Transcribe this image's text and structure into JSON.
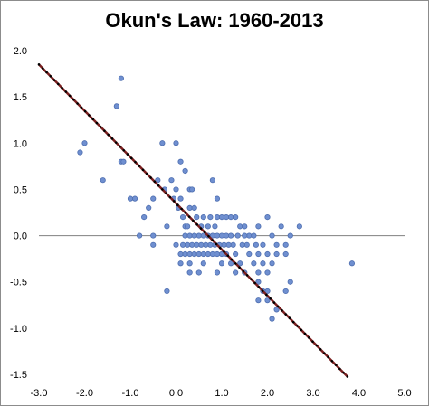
{
  "chart_data": {
    "type": "scatter",
    "title": "Okun's Law: 1960-2013",
    "xlabel": "",
    "ylabel": "",
    "xlim": [
      -3.0,
      5.0
    ],
    "ylim": [
      -1.5,
      2.0
    ],
    "xticks": [
      "-3.0",
      "-2.0",
      "-1.0",
      "0.0",
      "1.0",
      "2.0",
      "3.0",
      "4.0",
      "5.0"
    ],
    "yticks": [
      "2.0",
      "1.5",
      "1.0",
      "0.5",
      "0.0",
      "-0.5",
      "-1.0",
      "-1.5"
    ],
    "grid": false,
    "legend": "none",
    "colors": {
      "points": "#6f8fd0",
      "point_edge": "#4f6fb0",
      "trendline": "#7a1f1f",
      "trend_markers": "#000000",
      "axes": "#808080"
    },
    "points": [
      [
        -1.2,
        1.7
      ],
      [
        -1.3,
        1.4
      ],
      [
        -2.0,
        1.0
      ],
      [
        -2.1,
        0.9
      ],
      [
        -1.2,
        0.8
      ],
      [
        -1.15,
        0.8
      ],
      [
        -1.6,
        0.6
      ],
      [
        -0.3,
        1.0
      ],
      [
        0.0,
        1.0
      ],
      [
        -1.0,
        0.4
      ],
      [
        -0.9,
        0.4
      ],
      [
        -0.4,
        0.6
      ],
      [
        -0.25,
        0.5
      ],
      [
        -0.1,
        0.6
      ],
      [
        0.1,
        0.8
      ],
      [
        0.2,
        0.7
      ],
      [
        0.3,
        0.5
      ],
      [
        0.35,
        0.5
      ],
      [
        0.8,
        0.6
      ],
      [
        0.9,
        0.4
      ],
      [
        0.0,
        0.5
      ],
      [
        -0.5,
        0.4
      ],
      [
        -0.6,
        0.3
      ],
      [
        -0.7,
        0.2
      ],
      [
        -0.05,
        0.4
      ],
      [
        0.05,
        0.3
      ],
      [
        0.1,
        0.4
      ],
      [
        0.15,
        0.2
      ],
      [
        0.2,
        0.1
      ],
      [
        0.25,
        0.1
      ],
      [
        0.3,
        0.3
      ],
      [
        0.4,
        0.3
      ],
      [
        0.45,
        0.2
      ],
      [
        0.5,
        0.0
      ],
      [
        0.55,
        0.1
      ],
      [
        0.6,
        0.2
      ],
      [
        0.7,
        0.1
      ],
      [
        0.75,
        0.2
      ],
      [
        0.8,
        0.0
      ],
      [
        0.85,
        0.1
      ],
      [
        0.9,
        0.2
      ],
      [
        1.0,
        0.2
      ],
      [
        1.1,
        0.2
      ],
      [
        1.2,
        0.2
      ],
      [
        1.3,
        0.2
      ],
      [
        1.35,
        0.0
      ],
      [
        1.4,
        0.1
      ],
      [
        1.5,
        0.1
      ],
      [
        1.6,
        0.0
      ],
      [
        1.7,
        0.0
      ],
      [
        1.8,
        0.1
      ],
      [
        2.0,
        0.2
      ],
      [
        2.1,
        0.0
      ],
      [
        2.3,
        0.1
      ],
      [
        2.5,
        0.0
      ],
      [
        2.7,
        0.1
      ],
      [
        2.4,
        -0.1
      ],
      [
        2.2,
        -0.1
      ],
      [
        1.9,
        -0.1
      ],
      [
        1.75,
        -0.1
      ],
      [
        1.55,
        -0.1
      ],
      [
        1.45,
        -0.1
      ],
      [
        1.25,
        -0.1
      ],
      [
        1.15,
        -0.1
      ],
      [
        1.05,
        -0.1
      ],
      [
        0.95,
        -0.1
      ],
      [
        0.85,
        -0.1
      ],
      [
        0.75,
        -0.1
      ],
      [
        0.65,
        -0.1
      ],
      [
        0.55,
        -0.1
      ],
      [
        0.45,
        -0.1
      ],
      [
        0.35,
        -0.1
      ],
      [
        0.25,
        -0.1
      ],
      [
        0.15,
        -0.1
      ],
      [
        0.2,
        0.0
      ],
      [
        0.3,
        0.0
      ],
      [
        0.4,
        0.0
      ],
      [
        0.6,
        0.0
      ],
      [
        0.7,
        0.0
      ],
      [
        0.9,
        0.0
      ],
      [
        1.0,
        0.0
      ],
      [
        1.1,
        0.0
      ],
      [
        1.2,
        0.0
      ],
      [
        1.5,
        0.0
      ],
      [
        -0.8,
        0.0
      ],
      [
        -0.5,
        0.0
      ],
      [
        -0.2,
        0.1
      ],
      [
        -0.5,
        -0.1
      ],
      [
        0.0,
        -0.1
      ],
      [
        0.1,
        -0.2
      ],
      [
        0.2,
        -0.2
      ],
      [
        0.3,
        -0.2
      ],
      [
        0.4,
        -0.2
      ],
      [
        0.5,
        -0.2
      ],
      [
        0.6,
        -0.2
      ],
      [
        0.7,
        -0.2
      ],
      [
        0.8,
        -0.2
      ],
      [
        0.9,
        -0.2
      ],
      [
        1.0,
        -0.2
      ],
      [
        1.1,
        -0.2
      ],
      [
        1.3,
        -0.2
      ],
      [
        1.6,
        -0.2
      ],
      [
        1.8,
        -0.2
      ],
      [
        2.0,
        -0.2
      ],
      [
        2.2,
        -0.2
      ],
      [
        2.4,
        -0.2
      ],
      [
        0.1,
        -0.3
      ],
      [
        0.3,
        -0.3
      ],
      [
        0.6,
        -0.3
      ],
      [
        1.0,
        -0.3
      ],
      [
        1.2,
        -0.3
      ],
      [
        1.4,
        -0.3
      ],
      [
        1.7,
        -0.3
      ],
      [
        1.9,
        -0.3
      ],
      [
        2.1,
        -0.3
      ],
      [
        0.5,
        -0.4
      ],
      [
        0.9,
        -0.4
      ],
      [
        1.3,
        -0.4
      ],
      [
        1.5,
        -0.4
      ],
      [
        1.8,
        -0.4
      ],
      [
        0.3,
        -0.4
      ],
      [
        2.0,
        -0.4
      ],
      [
        1.8,
        -0.5
      ],
      [
        2.5,
        -0.5
      ],
      [
        2.0,
        -0.6
      ],
      [
        2.4,
        -0.6
      ],
      [
        1.9,
        -0.6
      ],
      [
        2.0,
        -0.7
      ],
      [
        1.8,
        -0.7
      ],
      [
        2.2,
        -0.8
      ],
      [
        2.1,
        -0.9
      ],
      [
        -0.2,
        -0.6
      ],
      [
        3.85,
        -0.3
      ]
    ],
    "trendline": {
      "slope": -0.5,
      "intercept": 0.35,
      "x_range": [
        -3.0,
        3.75
      ]
    }
  }
}
